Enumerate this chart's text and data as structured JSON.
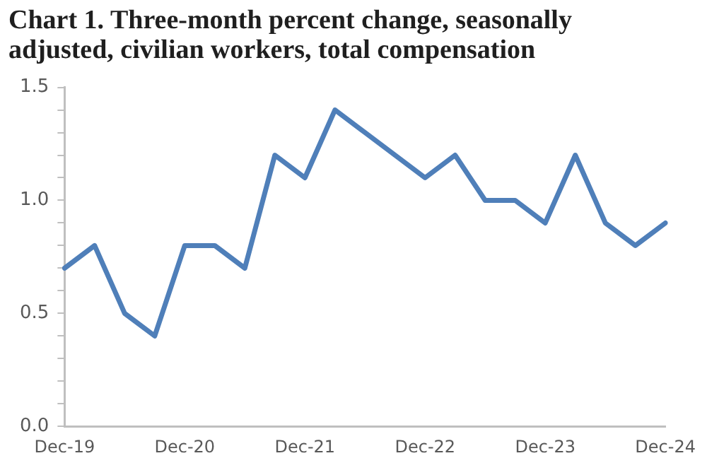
{
  "chart_data": {
    "type": "line",
    "title": "Chart 1. Three-month percent change, seasonally adjusted, civilian workers, total compensation",
    "categories": [
      "Dec-19",
      null,
      null,
      null,
      "Dec-20",
      null,
      null,
      null,
      "Dec-21",
      null,
      null,
      null,
      "Dec-22",
      null,
      null,
      null,
      "Dec-23",
      null,
      null,
      null,
      "Dec-24"
    ],
    "series": [
      {
        "color": "#4f7fb9",
        "values": [
          0.7,
          0.8,
          0.5,
          0.4,
          0.8,
          0.8,
          0.7,
          1.2,
          1.1,
          1.4,
          1.3,
          1.2,
          1.1,
          1.2,
          1.0,
          1.0,
          0.9,
          1.2,
          0.9,
          0.8,
          0.9
        ]
      }
    ],
    "ylim": [
      0,
      1.5
    ],
    "yticks": [
      {
        "value": 0,
        "label": "0.0"
      },
      {
        "value": 0.1,
        "label": null
      },
      {
        "value": 0.2,
        "label": null
      },
      {
        "value": 0.3,
        "label": null
      },
      {
        "value": 0.4,
        "label": null
      },
      0.5,
      {
        "value": 0.6,
        "label": null
      },
      {
        "value": 0.7,
        "label": null
      },
      {
        "value": 0.8,
        "label": null
      },
      {
        "value": 0.9,
        "label": null
      },
      {
        "value": 1,
        "label": "1.0"
      },
      {
        "value": 1.1,
        "label": null
      },
      {
        "value": 1.2,
        "label": null
      },
      {
        "value": 1.3,
        "label": null
      },
      {
        "value": 1.4,
        "label": null
      },
      1.5
    ],
    "grid": false,
    "legend": false,
    "marker": "none",
    "line_style": "solid"
  }
}
